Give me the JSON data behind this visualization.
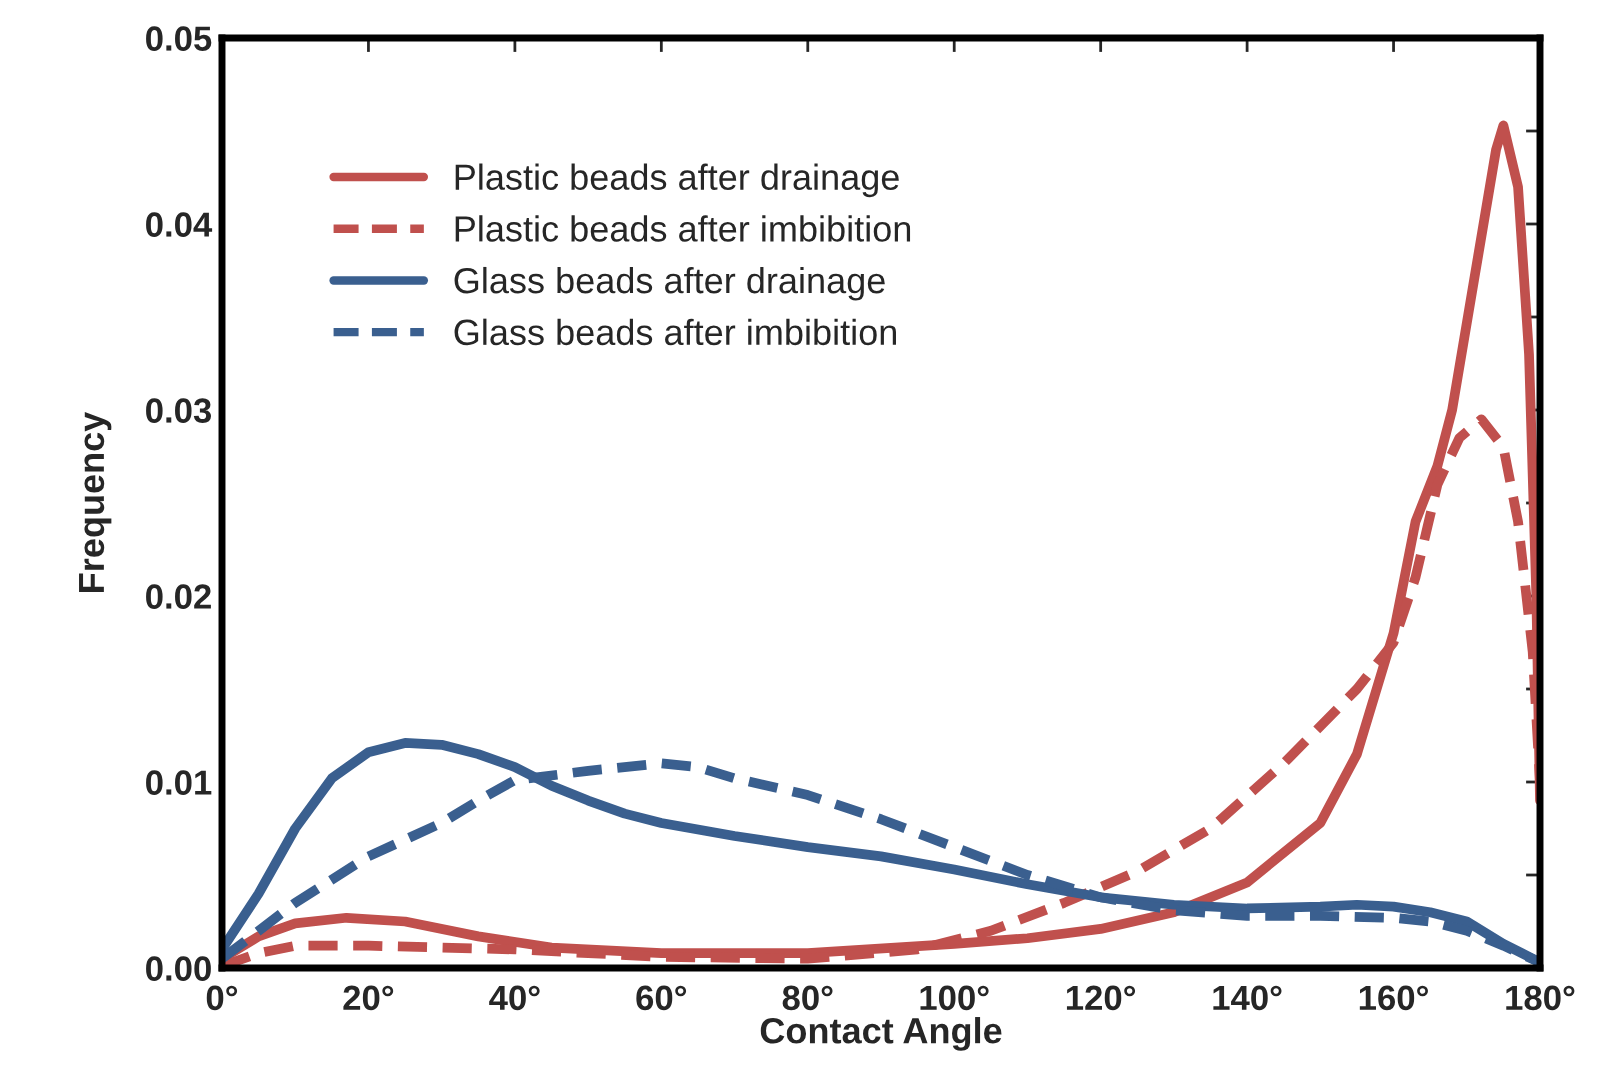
{
  "chart_data": {
    "type": "line",
    "xlabel": "Contact Angle",
    "ylabel": "Frequency",
    "xlim": [
      0,
      180
    ],
    "ylim": [
      0,
      0.05
    ],
    "xticks": [
      {
        "value": 0,
        "label": "0°"
      },
      {
        "value": 20,
        "label": "20°"
      },
      {
        "value": 40,
        "label": "40°"
      },
      {
        "value": 60,
        "label": "60°"
      },
      {
        "value": 80,
        "label": "80°"
      },
      {
        "value": 100,
        "label": "100°"
      },
      {
        "value": 120,
        "label": "120°"
      },
      {
        "value": 140,
        "label": "140°"
      },
      {
        "value": 160,
        "label": "160°"
      },
      {
        "value": 180,
        "label": "180°"
      }
    ],
    "yticks": [
      {
        "value": 0,
        "label": "0.00"
      },
      {
        "value": 0.005,
        "label": null
      },
      {
        "value": 0.01,
        "label": "0.01"
      },
      {
        "value": 0.015,
        "label": null
      },
      {
        "value": 0.02,
        "label": "0.02"
      },
      {
        "value": 0.025,
        "label": null
      },
      {
        "value": 0.03,
        "label": "0.03"
      },
      {
        "value": 0.035,
        "label": null
      },
      {
        "value": 0.04,
        "label": "0.04"
      },
      {
        "value": 0.045,
        "label": null
      },
      {
        "value": 0.05,
        "label": "0.05"
      }
    ],
    "grid": false,
    "legend": "top left",
    "marker": "none",
    "series": [
      {
        "name": "Plastic beads after drainage",
        "color": "#c0504d",
        "line_style": "solid",
        "x": [
          0,
          5,
          10,
          17,
          25,
          35,
          45,
          60,
          80,
          100,
          110,
          120,
          130,
          140,
          150,
          155,
          160,
          163,
          166,
          168,
          171,
          174,
          175,
          177,
          178.5,
          179.5,
          180
        ],
        "values": [
          0.0005,
          0.0017,
          0.0024,
          0.0027,
          0.0025,
          0.0017,
          0.0011,
          0.0008,
          0.0008,
          0.0013,
          0.0016,
          0.0021,
          0.003,
          0.0046,
          0.0078,
          0.0115,
          0.018,
          0.024,
          0.027,
          0.03,
          0.037,
          0.044,
          0.0453,
          0.042,
          0.033,
          0.02,
          0.009
        ]
      },
      {
        "name": "Plastic beads after imbibition",
        "color": "#c0504d",
        "line_style": "dashed",
        "x": [
          0,
          5,
          10,
          20,
          40,
          60,
          80,
          95,
          105,
          115,
          125,
          135,
          145,
          155,
          160,
          163,
          166,
          169,
          172,
          175,
          177,
          179,
          180
        ],
        "values": [
          0.0001,
          0.0008,
          0.0012,
          0.0012,
          0.001,
          0.0006,
          0.0005,
          0.001,
          0.002,
          0.0035,
          0.0052,
          0.0075,
          0.011,
          0.015,
          0.0175,
          0.021,
          0.026,
          0.0285,
          0.0295,
          0.028,
          0.024,
          0.017,
          0.01
        ]
      },
      {
        "name": "Glass beads after drainage",
        "color": "#3a5f8f",
        "line_style": "solid",
        "x": [
          0,
          5,
          10,
          15,
          20,
          25,
          30,
          35,
          40,
          45,
          50,
          55,
          60,
          70,
          80,
          90,
          100,
          110,
          120,
          130,
          140,
          150,
          155,
          160,
          165,
          170,
          175,
          180
        ],
        "values": [
          0.001,
          0.004,
          0.0075,
          0.0102,
          0.0116,
          0.0121,
          0.012,
          0.0115,
          0.0108,
          0.0098,
          0.009,
          0.0083,
          0.0078,
          0.0071,
          0.0065,
          0.006,
          0.0053,
          0.0045,
          0.0038,
          0.0034,
          0.0032,
          0.0033,
          0.0034,
          0.0033,
          0.003,
          0.0025,
          0.0013,
          0.0003
        ]
      },
      {
        "name": "Glass beads after imbibition",
        "color": "#3a5f8f",
        "line_style": "dashed",
        "x": [
          0,
          5,
          10,
          20,
          30,
          35,
          40,
          50,
          60,
          65,
          70,
          80,
          90,
          100,
          110,
          120,
          130,
          140,
          150,
          160,
          165,
          170,
          175,
          180
        ],
        "values": [
          0.0005,
          0.002,
          0.0035,
          0.006,
          0.0078,
          0.009,
          0.0101,
          0.0106,
          0.011,
          0.0108,
          0.0102,
          0.0093,
          0.008,
          0.0065,
          0.005,
          0.0038,
          0.0031,
          0.0028,
          0.0028,
          0.0027,
          0.0025,
          0.002,
          0.0012,
          0.0003
        ]
      }
    ]
  }
}
